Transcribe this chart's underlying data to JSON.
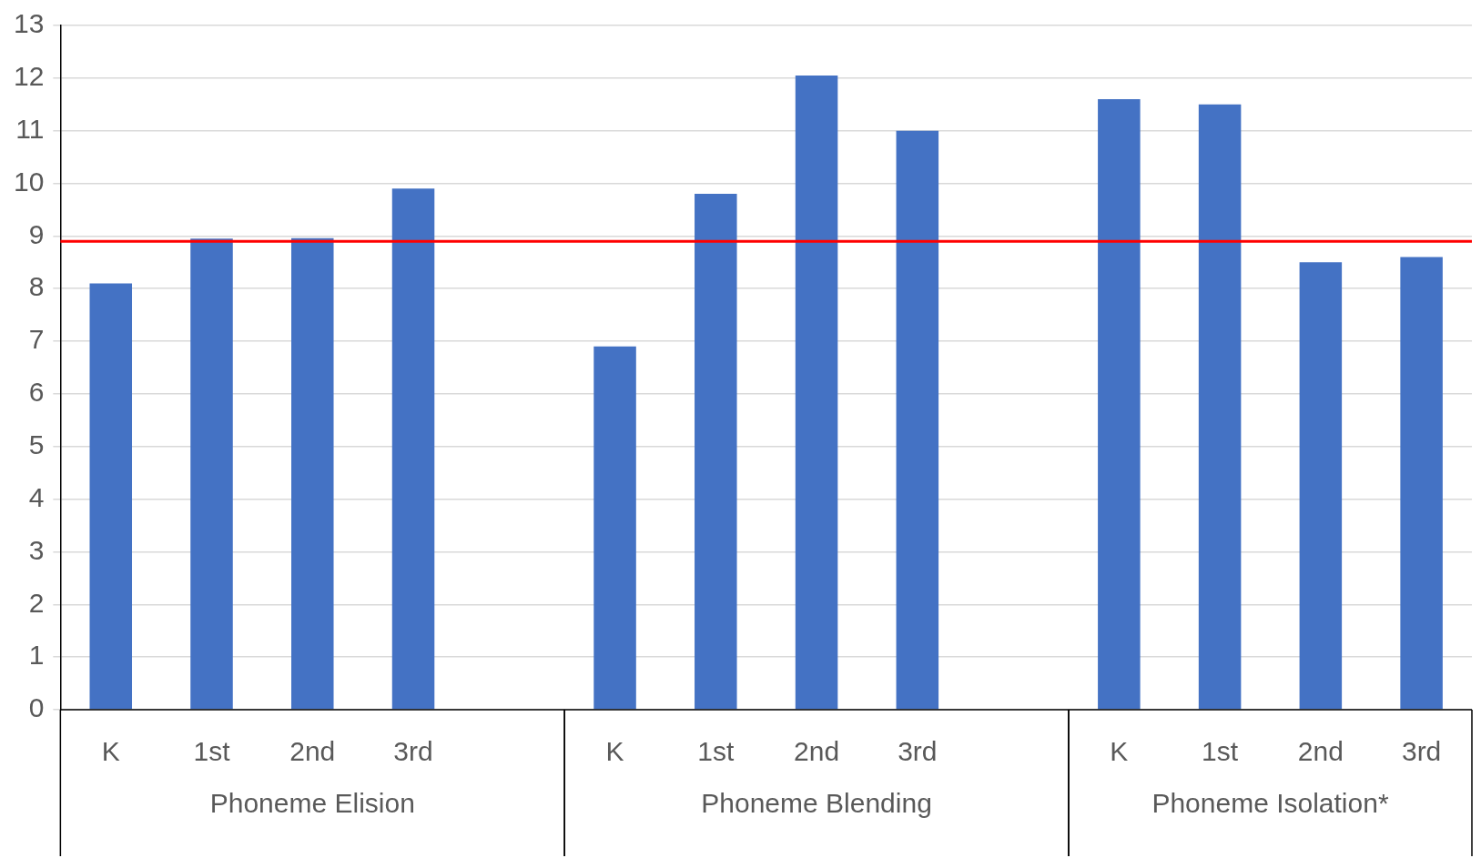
{
  "chart_data": {
    "type": "bar",
    "categories": [
      "K",
      "1st",
      "2nd",
      "3rd",
      null,
      "K",
      "1st",
      "2nd",
      "3rd",
      null,
      "K",
      "1st",
      "2nd",
      "3rd"
    ],
    "values": [
      8.1,
      8.95,
      8.96,
      9.9,
      null,
      6.9,
      9.8,
      12.05,
      11.0,
      null,
      11.6,
      11.5,
      8.5,
      8.6
    ],
    "color": "#4472c4",
    "ylim": [
      0,
      13
    ],
    "yticks": [
      0,
      1,
      2,
      3,
      4,
      5,
      6,
      7,
      8,
      9,
      10,
      11,
      12,
      13
    ],
    "grid": "y",
    "legend": false,
    "ref_lines": [
      {
        "axis": "y",
        "value": 8.9,
        "color": "#ff0000"
      }
    ],
    "annotations": [
      "Phoneme Elision",
      "Phoneme Blending",
      "Phoneme Isolation*"
    ]
  }
}
